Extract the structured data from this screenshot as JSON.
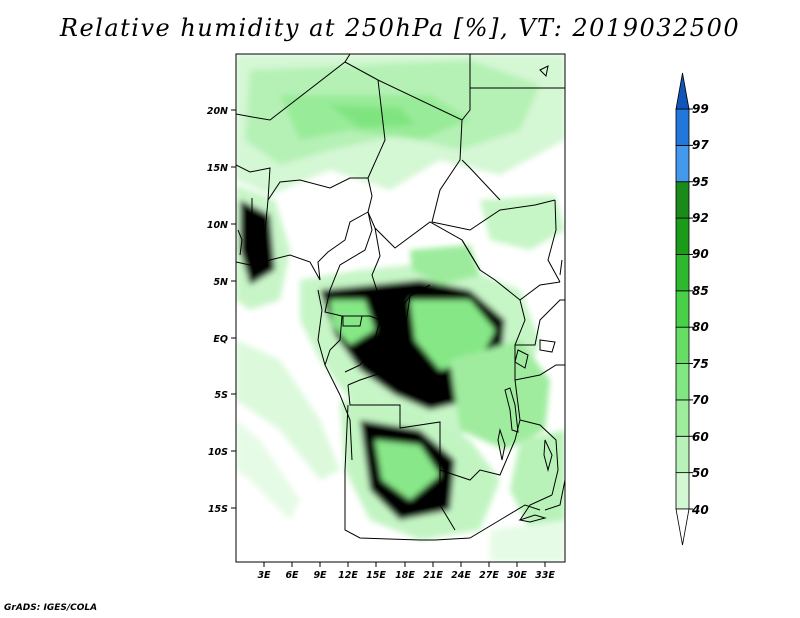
{
  "title": "Relative humidity at 250hPa [%], VT: 2019032500",
  "credit": "GrADS: IGES/COLA",
  "map": {
    "lat_labels": [
      "20N",
      "15N",
      "10N",
      "5N",
      "EQ",
      "5S",
      "10S",
      "15S"
    ],
    "lon_labels": [
      "3E",
      "6E",
      "9E",
      "12E",
      "15E",
      "18E",
      "21E",
      "24E",
      "27E",
      "30E",
      "33E"
    ]
  },
  "colorbar": {
    "levels": [
      "40",
      "50",
      "60",
      "70",
      "75",
      "80",
      "85",
      "90",
      "92",
      "95",
      "97",
      "99"
    ],
    "colors": [
      "#eafcea",
      "#d2f7d2",
      "#b8f2b8",
      "#9ded9d",
      "#82e682",
      "#66de66",
      "#48d048",
      "#2eb82e",
      "#1a9c1a",
      "#1a8a1a",
      "#4499ee",
      "#2277dd",
      "#1155bb"
    ]
  }
}
